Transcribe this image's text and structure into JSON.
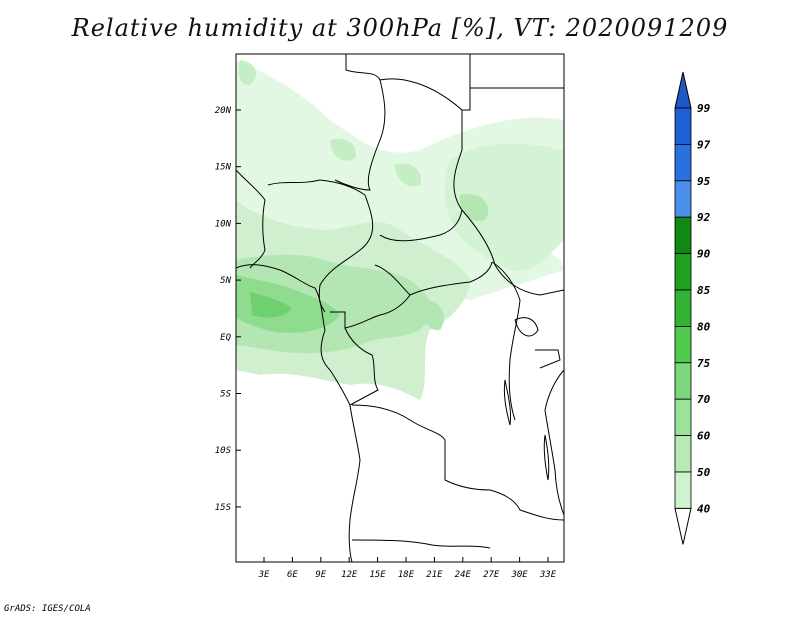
{
  "title": "Relative humidity at 300hPa [%], VT: 2020091209",
  "credit": "GrADS: IGES/COLA",
  "map": {
    "lon_labels": [
      "3E",
      "6E",
      "9E",
      "12E",
      "15E",
      "18E",
      "21E",
      "24E",
      "27E",
      "30E",
      "33E"
    ],
    "lat_labels": [
      "20N",
      "15N",
      "10N",
      "5N",
      "EQ",
      "5S",
      "10S",
      "15S"
    ]
  },
  "colorbar": {
    "levels": [
      "99",
      "97",
      "95",
      "92",
      "90",
      "85",
      "80",
      "75",
      "70",
      "60",
      "50",
      "40"
    ],
    "colors": [
      "#1f5fd6",
      "#2a70e0",
      "#4a90ea",
      "#118811",
      "#1fa01f",
      "#33b233",
      "#4fca4f",
      "#7cd87c",
      "#9be29b",
      "#b6ebb6",
      "#cff3cf",
      "#e6fae6"
    ],
    "top_arrow_color": "#1e59c8"
  }
}
